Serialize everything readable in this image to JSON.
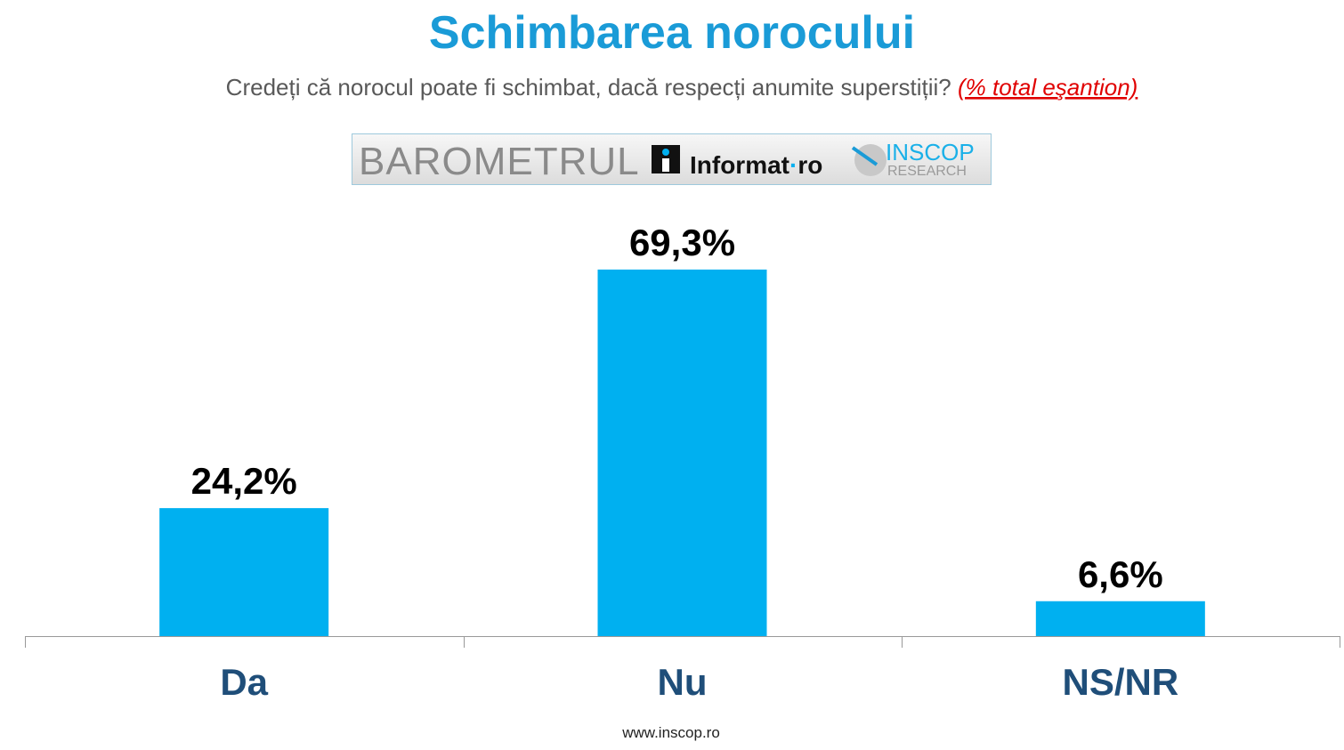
{
  "chart_data": {
    "type": "bar",
    "title": "Schimbarea norocului",
    "subtitle": "Credeți că norocul poate fi schimbat, dacă respecți anumite superstiții?",
    "subtitle_note": "(% total eşantion)",
    "logo": {
      "barometer": "BAROMETRUL",
      "partner": "Informat",
      "partner_suffix": "ro",
      "brand": "INSCOP",
      "brand_sub": "RESEARCH"
    },
    "categories": [
      "Da",
      "Nu",
      "NS/NR"
    ],
    "values": [
      24.2,
      69.3,
      6.6
    ],
    "value_labels": [
      "24,2%",
      "69,3%",
      "6,6%"
    ],
    "color": "#00b0f0",
    "footer": "www.inscop.ro"
  }
}
